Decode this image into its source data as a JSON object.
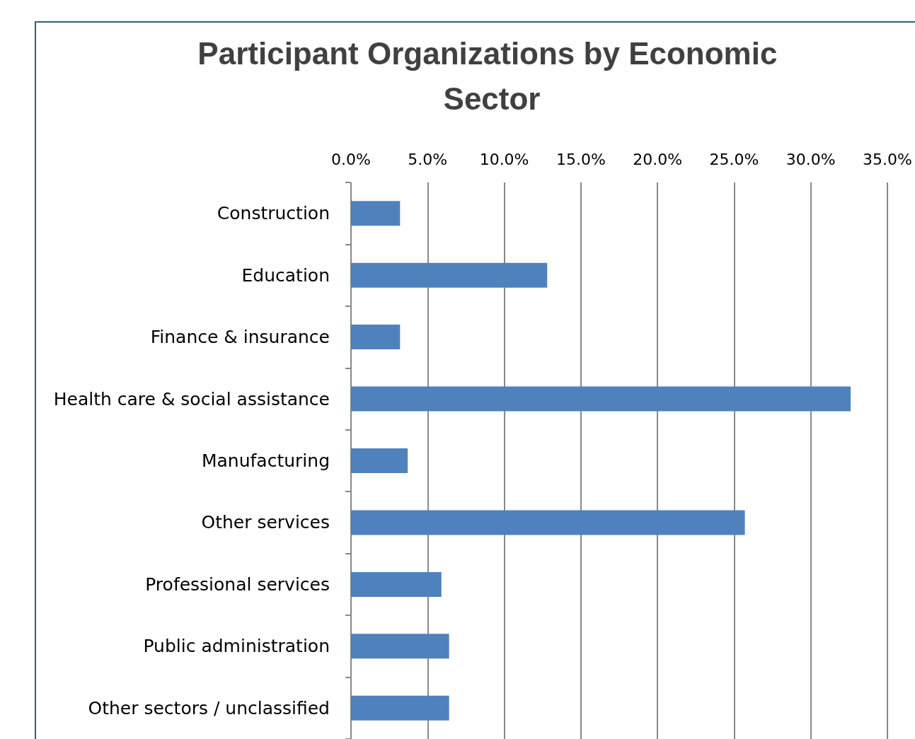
{
  "chart_data": {
    "type": "bar",
    "orientation": "horizontal",
    "title": "Participant Organizations by Economic Sector",
    "categories": [
      "Construction",
      "Education",
      "Finance & insurance",
      "Health care & social assistance",
      "Manufacturing",
      "Other services",
      "Professional services",
      "Public administration",
      "Other sectors / unclassified"
    ],
    "values": [
      3.2,
      12.8,
      3.2,
      32.6,
      3.7,
      25.7,
      5.9,
      6.4,
      6.4
    ],
    "color": "#4f81bd",
    "xlim": [
      0,
      35
    ],
    "xticks": [
      {
        "value": 0,
        "label": "0.0%"
      },
      {
        "value": 5,
        "label": "5.0%"
      },
      {
        "value": 10,
        "label": "10.0%"
      },
      {
        "value": 15,
        "label": "15.0%"
      },
      {
        "value": 20,
        "label": "20.0%"
      },
      {
        "value": 25,
        "label": "25.0%"
      },
      {
        "value": 30,
        "label": "30.0%"
      },
      {
        "value": 35,
        "label": "35.0%"
      }
    ],
    "grid": "x"
  }
}
